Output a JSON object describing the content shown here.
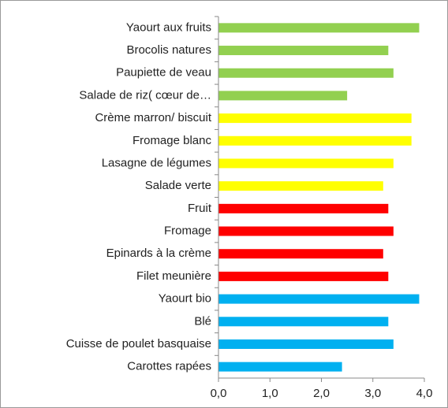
{
  "chart_data": {
    "type": "barh",
    "categories": [
      "Yaourt aux fruits",
      "Brocolis natures",
      "Paupiette de veau",
      "Salade de riz( cœur de…",
      "Crème marron/ biscuit",
      "Fromage blanc",
      "Lasagne de légumes",
      "Salade verte",
      "Fruit",
      "Fromage",
      "Epinards à la crème",
      "Filet meunière",
      "Yaourt bio",
      "Blé",
      "Cuisse de poulet basquaise",
      "Carottes rapées"
    ],
    "values": [
      3.9,
      3.3,
      3.4,
      2.5,
      3.75,
      3.75,
      3.4,
      3.2,
      3.3,
      3.4,
      3.2,
      3.3,
      3.9,
      3.3,
      3.4,
      2.4
    ],
    "colors": [
      "#92d050",
      "#92d050",
      "#92d050",
      "#92d050",
      "#ffff00",
      "#ffff00",
      "#ffff00",
      "#ffff00",
      "#ff0000",
      "#ff0000",
      "#ff0000",
      "#ff0000",
      "#00b0f0",
      "#00b0f0",
      "#00b0f0",
      "#00b0f0"
    ],
    "xlim": [
      0,
      4
    ],
    "xticks": [
      {
        "value": 0,
        "label": "0,0"
      },
      {
        "value": 1,
        "label": "1,0"
      },
      {
        "value": 2,
        "label": "2,0"
      },
      {
        "value": 3,
        "label": "3,0"
      },
      {
        "value": 4,
        "label": "4,0"
      }
    ],
    "grid": false
  }
}
